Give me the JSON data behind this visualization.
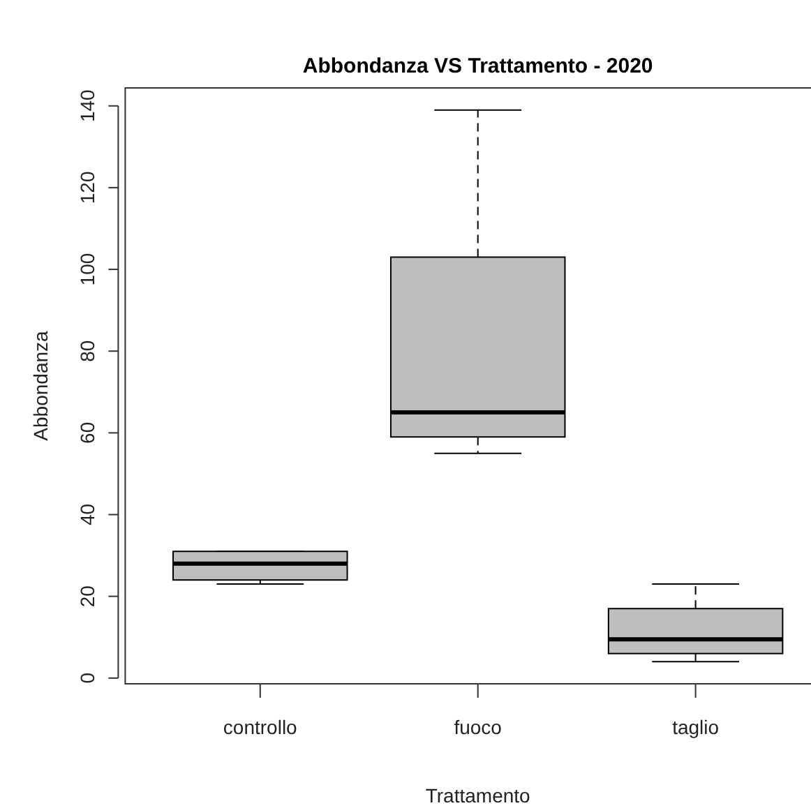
{
  "chart_data": {
    "type": "box",
    "title": "Abbondanza VS Trattamento - 2020",
    "xlabel": "Trattamento",
    "ylabel": "Abbondanza",
    "categories": [
      "controllo",
      "fuoco",
      "taglio"
    ],
    "boxes": [
      {
        "low": 23,
        "q1": 24,
        "median": 28,
        "q3": 31,
        "high": 31
      },
      {
        "low": 55,
        "q1": 59,
        "median": 65,
        "q3": 103,
        "high": 139
      },
      {
        "low": 4,
        "q1": 6,
        "median": 9.5,
        "q3": 17,
        "high": 23
      }
    ],
    "color": "#bebebe",
    "ylim": [
      -1.4,
      144.4
    ],
    "yticks": [
      0,
      20,
      40,
      60,
      80,
      100,
      120,
      140
    ]
  }
}
